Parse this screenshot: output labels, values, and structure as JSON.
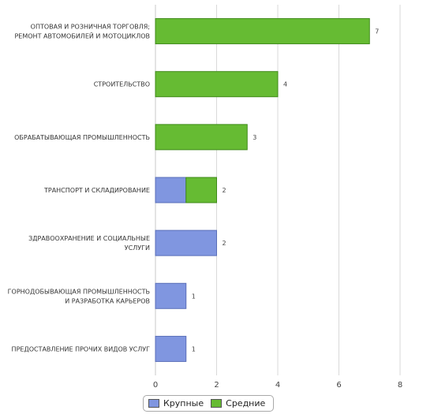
{
  "chart_data": {
    "type": "bar",
    "orientation": "horizontal",
    "stacked": true,
    "categories": [
      [
        "ОПТОВАЯ И РОЗНИЧНАЯ ТОРГОВЛЯ;",
        "РЕМОНТ АВТОМОБИЛЕЙ И МОТОЦИКЛОВ"
      ],
      [
        "СТРОИТЕЛЬСТВО"
      ],
      [
        "ОБРАБАТЫВАЮЩАЯ ПРОМЫШЛЕННОСТЬ"
      ],
      [
        "ТРАНСПОРТ И СКЛАДИРОВАНИЕ"
      ],
      [
        "ЗДРАВООХРАНЕНИЕ И СОЦИАЛЬНЫЕ",
        "УСЛУГИ"
      ],
      [
        "ГОРНОДОБЫВАЮЩАЯ ПРОМЫШЛЕННОСТЬ",
        "И РАЗРАБОТКА КАРЬЕРОВ"
      ],
      [
        "ПРЕДОСТАВЛЕНИЕ ПРОЧИХ ВИДОВ УСЛУГ"
      ]
    ],
    "series": [
      {
        "name": "Крупные",
        "color": "#8096e0",
        "values": [
          0,
          0,
          0,
          1,
          2,
          1,
          1
        ]
      },
      {
        "name": "Средние",
        "color": "#66bb33",
        "values": [
          7,
          4,
          3,
          1,
          0,
          0,
          0
        ]
      }
    ],
    "totals": [
      "7",
      "4",
      "3",
      "2",
      "2",
      "1",
      "1"
    ],
    "xlim": [
      0,
      8
    ],
    "xticks": [
      "0",
      "2",
      "4",
      "6",
      "8"
    ],
    "grid": true,
    "legend_position": "bottom"
  }
}
